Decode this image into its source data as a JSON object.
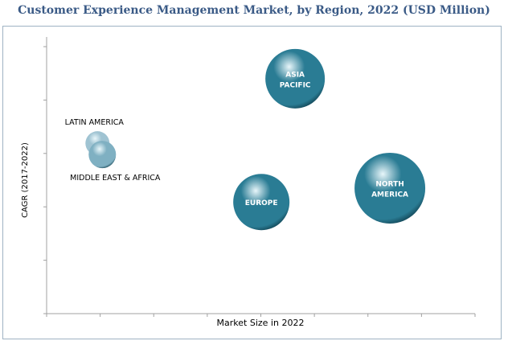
{
  "chart_data": {
    "type": "bubble",
    "title": "Customer Experience Management Market, by Region, 2022 (USD Million)",
    "xlabel": "Market Size in 2022",
    "ylabel": "CAGR (2017-2022)",
    "xlim": [
      0,
      8
    ],
    "ylim": [
      0,
      5
    ],
    "grid": false,
    "legend": "none",
    "series": [
      {
        "name": "LATIN AMERICA",
        "x": 0.95,
        "y": 3.19,
        "size": 15,
        "label_position": "above",
        "color": "#9fc3d2"
      },
      {
        "name": "MIDDLE EAST & AFRICA",
        "x": 1.04,
        "y": 2.98,
        "size": 17,
        "label_position": "below",
        "color": "#7fb0c2"
      },
      {
        "name": "ASIA PACIFIC",
        "x": 4.64,
        "y": 4.4,
        "size": 37,
        "label_position": "center",
        "color": "#2a7c94"
      },
      {
        "name": "EUROPE",
        "x": 4.01,
        "y": 2.09,
        "size": 35,
        "label_position": "center",
        "color": "#2a7c94"
      },
      {
        "name": "NORTH AMERICA",
        "x": 6.41,
        "y": 2.35,
        "size": 44,
        "label_position": "center",
        "color": "#2a7c94"
      }
    ]
  }
}
